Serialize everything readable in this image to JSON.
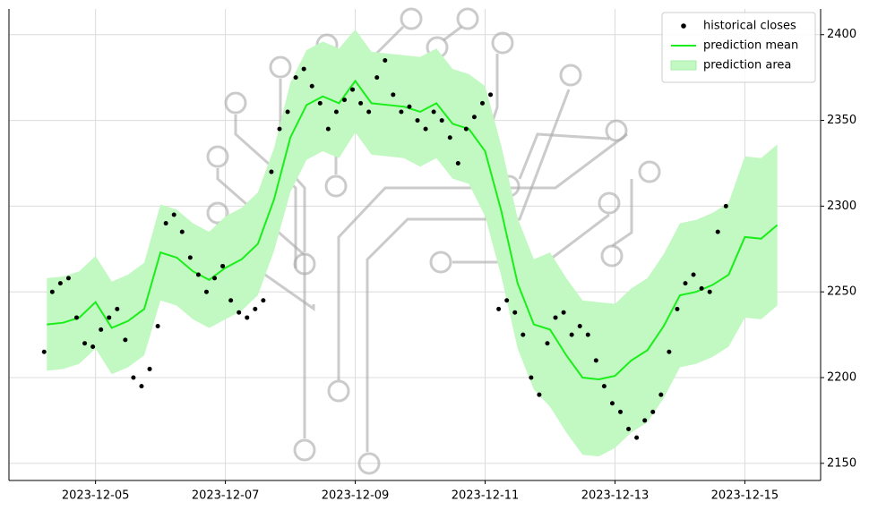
{
  "chart_data": {
    "type": "line",
    "xlim": [
      "2023-12-03 16:00",
      "2023-12-16 04:00"
    ],
    "xticks": [
      "2023-12-05",
      "2023-12-07",
      "2023-12-09",
      "2023-12-11",
      "2023-12-13",
      "2023-12-15"
    ],
    "ylim": [
      2140,
      2415
    ],
    "yticks": [
      2150,
      2200,
      2250,
      2300,
      2350,
      2400
    ],
    "grid": true,
    "legend": "upper right",
    "series": [
      {
        "name": "historical closes",
        "type": "scatter",
        "color": "#000000",
        "x": [
          "2023-12-04 05:00",
          "2023-12-04 08:00",
          "2023-12-04 11:00",
          "2023-12-04 14:00",
          "2023-12-04 17:00",
          "2023-12-04 20:00",
          "2023-12-04 23:00",
          "2023-12-05 02:00",
          "2023-12-05 05:00",
          "2023-12-05 08:00",
          "2023-12-05 11:00",
          "2023-12-05 14:00",
          "2023-12-05 17:00",
          "2023-12-05 20:00",
          "2023-12-05 23:00",
          "2023-12-06 02:00",
          "2023-12-06 05:00",
          "2023-12-06 08:00",
          "2023-12-06 11:00",
          "2023-12-06 14:00",
          "2023-12-06 17:00",
          "2023-12-06 20:00",
          "2023-12-06 23:00",
          "2023-12-07 02:00",
          "2023-12-07 05:00",
          "2023-12-07 08:00",
          "2023-12-07 11:00",
          "2023-12-07 14:00",
          "2023-12-07 17:00",
          "2023-12-07 20:00",
          "2023-12-07 23:00",
          "2023-12-08 02:00",
          "2023-12-08 05:00",
          "2023-12-08 08:00",
          "2023-12-08 11:00",
          "2023-12-08 14:00",
          "2023-12-08 17:00",
          "2023-12-08 20:00",
          "2023-12-08 23:00",
          "2023-12-09 02:00",
          "2023-12-09 05:00",
          "2023-12-09 08:00",
          "2023-12-09 11:00",
          "2023-12-09 14:00",
          "2023-12-09 17:00",
          "2023-12-09 20:00",
          "2023-12-09 23:00",
          "2023-12-10 02:00",
          "2023-12-10 05:00",
          "2023-12-10 08:00",
          "2023-12-10 11:00",
          "2023-12-10 14:00",
          "2023-12-10 17:00",
          "2023-12-10 20:00",
          "2023-12-10 23:00",
          "2023-12-11 02:00",
          "2023-12-11 05:00",
          "2023-12-11 08:00",
          "2023-12-11 11:00",
          "2023-12-11 14:00",
          "2023-12-11 17:00",
          "2023-12-11 20:00",
          "2023-12-11 23:00",
          "2023-12-12 02:00",
          "2023-12-12 05:00",
          "2023-12-12 08:00",
          "2023-12-12 11:00",
          "2023-12-12 14:00",
          "2023-12-12 17:00",
          "2023-12-12 20:00",
          "2023-12-12 23:00",
          "2023-12-13 02:00",
          "2023-12-13 05:00",
          "2023-12-13 08:00",
          "2023-12-13 11:00",
          "2023-12-13 14:00",
          "2023-12-13 17:00",
          "2023-12-13 20:00",
          "2023-12-13 23:00",
          "2023-12-14 02:00",
          "2023-12-14 05:00",
          "2023-12-14 08:00",
          "2023-12-14 11:00",
          "2023-12-14 14:00",
          "2023-12-14 17:00"
        ],
        "values": [
          2215,
          2250,
          2255,
          2258,
          2235,
          2220,
          2218,
          2228,
          2235,
          2240,
          2222,
          2200,
          2195,
          2205,
          2230,
          2290,
          2295,
          2285,
          2270,
          2260,
          2250,
          2258,
          2265,
          2245,
          2238,
          2235,
          2240,
          2245,
          2320,
          2345,
          2355,
          2375,
          2380,
          2370,
          2360,
          2345,
          2355,
          2362,
          2368,
          2360,
          2355,
          2375,
          2385,
          2365,
          2355,
          2358,
          2350,
          2345,
          2355,
          2350,
          2340,
          2325,
          2345,
          2352,
          2360,
          2365,
          2240,
          2245,
          2238,
          2225,
          2200,
          2190,
          2220,
          2235,
          2238,
          2225,
          2230,
          2225,
          2210,
          2195,
          2185,
          2180,
          2170,
          2165,
          2175,
          2180,
          2190,
          2215,
          2240,
          2255,
          2260,
          2252,
          2250,
          2285,
          2300
        ]
      },
      {
        "name": "prediction mean",
        "type": "line",
        "color": "#1aee1a",
        "x": [
          "2023-12-04 06:00",
          "2023-12-04 12:00",
          "2023-12-04 18:00",
          "2023-12-05 00:00",
          "2023-12-05 06:00",
          "2023-12-05 12:00",
          "2023-12-05 18:00",
          "2023-12-06 00:00",
          "2023-12-06 06:00",
          "2023-12-06 12:00",
          "2023-12-06 18:00",
          "2023-12-07 00:00",
          "2023-12-07 06:00",
          "2023-12-07 12:00",
          "2023-12-07 18:00",
          "2023-12-08 00:00",
          "2023-12-08 06:00",
          "2023-12-08 12:00",
          "2023-12-08 18:00",
          "2023-12-09 00:00",
          "2023-12-09 06:00",
          "2023-12-09 12:00",
          "2023-12-09 18:00",
          "2023-12-10 00:00",
          "2023-12-10 06:00",
          "2023-12-10 12:00",
          "2023-12-10 18:00",
          "2023-12-11 00:00",
          "2023-12-11 06:00",
          "2023-12-11 12:00",
          "2023-12-11 18:00",
          "2023-12-12 00:00",
          "2023-12-12 06:00",
          "2023-12-12 12:00",
          "2023-12-12 18:00",
          "2023-12-13 00:00",
          "2023-12-13 06:00",
          "2023-12-13 12:00",
          "2023-12-13 18:00",
          "2023-12-14 00:00",
          "2023-12-14 06:00",
          "2023-12-14 12:00",
          "2023-12-14 18:00",
          "2023-12-15 00:00",
          "2023-12-15 06:00",
          "2023-12-15 12:00"
        ],
        "values": [
          2231,
          2232,
          2235,
          2244,
          2229,
          2233,
          2240,
          2273,
          2270,
          2262,
          2257,
          2264,
          2269,
          2278,
          2304,
          2340,
          2359,
          2364,
          2360,
          2373,
          2360,
          2359,
          2358,
          2355,
          2360,
          2348,
          2345,
          2332,
          2297,
          2255,
          2231,
          2228,
          2213,
          2200,
          2199,
          2201,
          2210,
          2216,
          2230,
          2248,
          2250,
          2254,
          2260,
          2282,
          2281,
          2289
        ]
      },
      {
        "name": "prediction area",
        "type": "area",
        "color": "#c2f8c2",
        "x": [
          "2023-12-04 06:00",
          "2023-12-04 12:00",
          "2023-12-04 18:00",
          "2023-12-05 00:00",
          "2023-12-05 06:00",
          "2023-12-05 12:00",
          "2023-12-05 18:00",
          "2023-12-06 00:00",
          "2023-12-06 06:00",
          "2023-12-06 12:00",
          "2023-12-06 18:00",
          "2023-12-07 00:00",
          "2023-12-07 06:00",
          "2023-12-07 12:00",
          "2023-12-07 18:00",
          "2023-12-08 00:00",
          "2023-12-08 06:00",
          "2023-12-08 12:00",
          "2023-12-08 18:00",
          "2023-12-09 00:00",
          "2023-12-09 06:00",
          "2023-12-09 12:00",
          "2023-12-09 18:00",
          "2023-12-10 00:00",
          "2023-12-10 06:00",
          "2023-12-10 12:00",
          "2023-12-10 18:00",
          "2023-12-11 00:00",
          "2023-12-11 06:00",
          "2023-12-11 12:00",
          "2023-12-11 18:00",
          "2023-12-12 00:00",
          "2023-12-12 06:00",
          "2023-12-12 12:00",
          "2023-12-12 18:00",
          "2023-12-13 00:00",
          "2023-12-13 06:00",
          "2023-12-13 12:00",
          "2023-12-13 18:00",
          "2023-12-14 00:00",
          "2023-12-14 06:00",
          "2023-12-14 12:00",
          "2023-12-14 18:00",
          "2023-12-15 00:00",
          "2023-12-15 06:00",
          "2023-12-15 12:00"
        ],
        "lower": [
          2204,
          2205,
          2208,
          2217,
          2202,
          2206,
          2213,
          2245,
          2242,
          2234,
          2229,
          2234,
          2239,
          2248,
          2274,
          2308,
          2327,
          2332,
          2328,
          2343,
          2330,
          2329,
          2328,
          2323,
          2328,
          2316,
          2313,
          2294,
          2259,
          2217,
          2193,
          2183,
          2168,
          2155,
          2154,
          2159,
          2168,
          2174,
          2188,
          2206,
          2208,
          2212,
          2218,
          2235,
          2234,
          2242
        ],
        "upper": [
          2258,
          2259,
          2262,
          2271,
          2256,
          2260,
          2267,
          2301,
          2298,
          2290,
          2285,
          2294,
          2299,
          2308,
          2334,
          2372,
          2391,
          2396,
          2392,
          2403,
          2390,
          2389,
          2388,
          2387,
          2392,
          2380,
          2377,
          2370,
          2335,
          2293,
          2269,
          2273,
          2258,
          2245,
          2244,
          2243,
          2252,
          2258,
          2272,
          2290,
          2292,
          2296,
          2302,
          2329,
          2328,
          2336
        ]
      }
    ]
  }
}
